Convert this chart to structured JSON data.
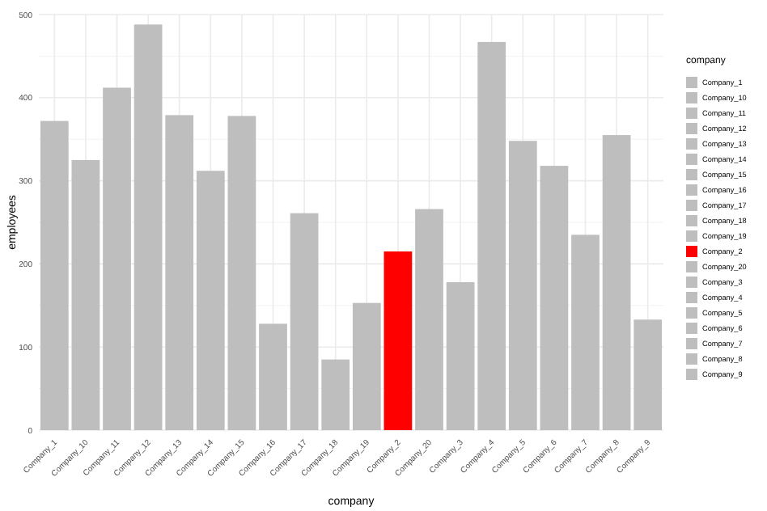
{
  "chart_data": {
    "type": "bar",
    "xlabel": "company",
    "ylabel": "employees",
    "legend_title": "company",
    "stacked": true,
    "categories": [
      "Company_1",
      "Company_10",
      "Company_11",
      "Company_12",
      "Company_13",
      "Company_14",
      "Company_15",
      "Company_16",
      "Company_17",
      "Company_18",
      "Company_19",
      "Company_2",
      "Company_20",
      "Company_3",
      "Company_4",
      "Company_5",
      "Company_6",
      "Company_7",
      "Company_8",
      "Company_9"
    ],
    "series": [
      {
        "name": "Company_1",
        "color": "#bebebe",
        "values": [
          372,
          null,
          null,
          null,
          null,
          null,
          null,
          null,
          null,
          null,
          null,
          null,
          null,
          null,
          null,
          null,
          null,
          null,
          null,
          null
        ]
      },
      {
        "name": "Company_10",
        "color": "#bebebe",
        "values": [
          null,
          325,
          null,
          null,
          null,
          null,
          null,
          null,
          null,
          null,
          null,
          null,
          null,
          null,
          null,
          null,
          null,
          null,
          null,
          null
        ]
      },
      {
        "name": "Company_11",
        "color": "#bebebe",
        "values": [
          null,
          null,
          412,
          null,
          null,
          null,
          null,
          null,
          null,
          null,
          null,
          null,
          null,
          null,
          null,
          null,
          null,
          null,
          null,
          null
        ]
      },
      {
        "name": "Company_12",
        "color": "#bebebe",
        "values": [
          null,
          null,
          null,
          488,
          null,
          null,
          null,
          null,
          null,
          null,
          null,
          null,
          null,
          null,
          null,
          null,
          null,
          null,
          null,
          null
        ]
      },
      {
        "name": "Company_13",
        "color": "#bebebe",
        "values": [
          null,
          null,
          null,
          null,
          379,
          null,
          null,
          null,
          null,
          null,
          null,
          null,
          null,
          null,
          null,
          null,
          null,
          null,
          null,
          null
        ]
      },
      {
        "name": "Company_14",
        "color": "#bebebe",
        "values": [
          null,
          null,
          null,
          null,
          null,
          312,
          null,
          null,
          null,
          null,
          null,
          null,
          null,
          null,
          null,
          null,
          null,
          null,
          null,
          null
        ]
      },
      {
        "name": "Company_15",
        "color": "#bebebe",
        "values": [
          null,
          null,
          null,
          null,
          null,
          null,
          378,
          null,
          null,
          null,
          null,
          null,
          null,
          null,
          null,
          null,
          null,
          null,
          null,
          null
        ]
      },
      {
        "name": "Company_16",
        "color": "#bebebe",
        "values": [
          null,
          null,
          null,
          null,
          null,
          null,
          null,
          128,
          null,
          null,
          null,
          null,
          null,
          null,
          null,
          null,
          null,
          null,
          null,
          null
        ]
      },
      {
        "name": "Company_17",
        "color": "#bebebe",
        "values": [
          null,
          null,
          null,
          null,
          null,
          null,
          null,
          null,
          261,
          null,
          null,
          null,
          null,
          null,
          null,
          null,
          null,
          null,
          null,
          null
        ]
      },
      {
        "name": "Company_18",
        "color": "#bebebe",
        "values": [
          null,
          null,
          null,
          null,
          null,
          null,
          null,
          null,
          null,
          85,
          null,
          null,
          null,
          null,
          null,
          null,
          null,
          null,
          null,
          null
        ]
      },
      {
        "name": "Company_19",
        "color": "#bebebe",
        "values": [
          null,
          null,
          null,
          null,
          null,
          null,
          null,
          null,
          null,
          null,
          153,
          null,
          null,
          null,
          null,
          null,
          null,
          null,
          null,
          null
        ]
      },
      {
        "name": "Company_2",
        "color": "#ff0000",
        "values": [
          null,
          null,
          null,
          null,
          null,
          null,
          null,
          null,
          null,
          null,
          null,
          215,
          null,
          null,
          null,
          null,
          null,
          null,
          null,
          null
        ]
      },
      {
        "name": "Company_20",
        "color": "#bebebe",
        "values": [
          null,
          null,
          null,
          null,
          null,
          null,
          null,
          null,
          null,
          null,
          null,
          null,
          266,
          null,
          null,
          null,
          null,
          null,
          null,
          null
        ]
      },
      {
        "name": "Company_3",
        "color": "#bebebe",
        "values": [
          null,
          null,
          null,
          null,
          null,
          null,
          null,
          null,
          null,
          null,
          null,
          null,
          null,
          178,
          null,
          null,
          null,
          null,
          null,
          null
        ]
      },
      {
        "name": "Company_4",
        "color": "#bebebe",
        "values": [
          null,
          null,
          null,
          null,
          null,
          null,
          null,
          null,
          null,
          null,
          null,
          null,
          null,
          null,
          467,
          null,
          null,
          null,
          null,
          null
        ]
      },
      {
        "name": "Company_5",
        "color": "#bebebe",
        "values": [
          null,
          null,
          null,
          null,
          null,
          null,
          null,
          null,
          null,
          null,
          null,
          null,
          null,
          null,
          null,
          348,
          null,
          null,
          null,
          null
        ]
      },
      {
        "name": "Company_6",
        "color": "#bebebe",
        "values": [
          null,
          null,
          null,
          null,
          null,
          null,
          null,
          null,
          null,
          null,
          null,
          null,
          null,
          null,
          null,
          null,
          318,
          null,
          null,
          null
        ]
      },
      {
        "name": "Company_7",
        "color": "#bebebe",
        "values": [
          null,
          null,
          null,
          null,
          null,
          null,
          null,
          null,
          null,
          null,
          null,
          null,
          null,
          null,
          null,
          null,
          null,
          235,
          null,
          null
        ]
      },
      {
        "name": "Company_8",
        "color": "#bebebe",
        "values": [
          null,
          null,
          null,
          null,
          null,
          null,
          null,
          null,
          null,
          null,
          null,
          null,
          null,
          null,
          null,
          null,
          null,
          null,
          355,
          null
        ]
      },
      {
        "name": "Company_9",
        "color": "#bebebe",
        "values": [
          null,
          null,
          null,
          null,
          null,
          null,
          null,
          null,
          null,
          null,
          null,
          null,
          null,
          null,
          null,
          null,
          null,
          null,
          null,
          133
        ]
      }
    ],
    "ylim": [
      0,
      500
    ],
    "yticks": [
      0,
      100,
      200,
      300,
      400,
      500
    ],
    "grid": true,
    "legend": "right"
  }
}
